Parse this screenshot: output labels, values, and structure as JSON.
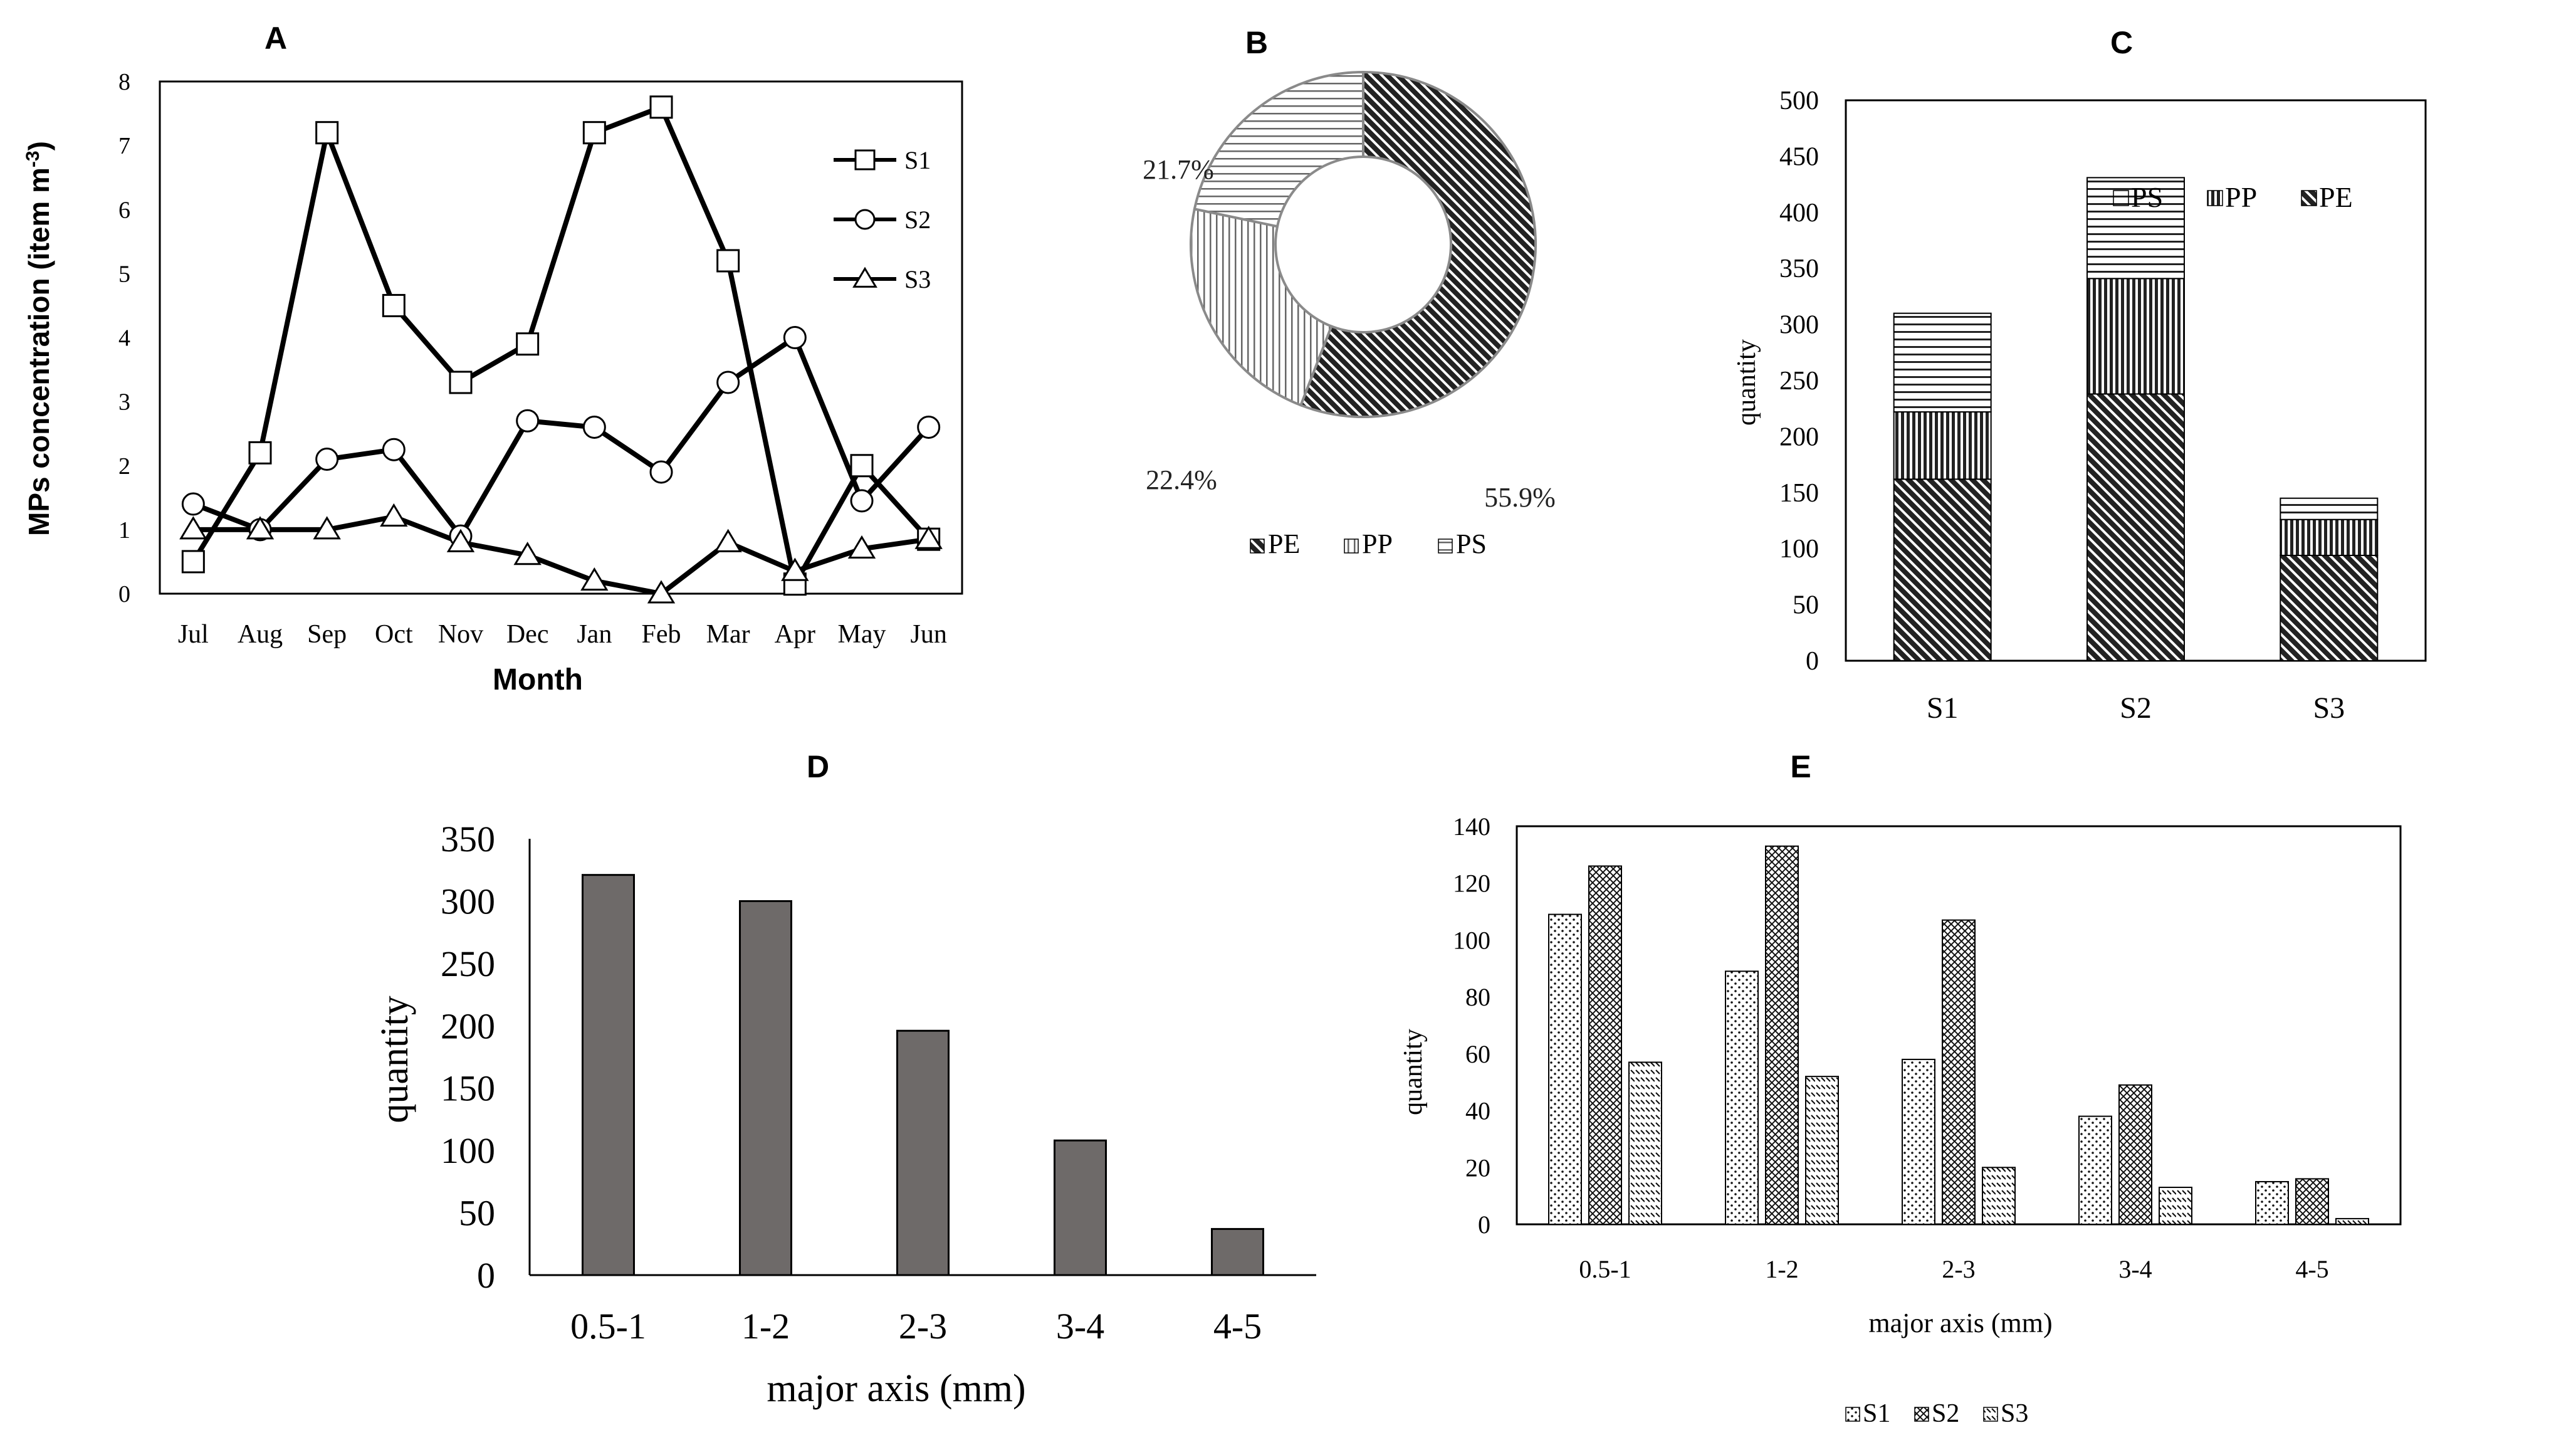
{
  "panel_labels": {
    "a": "A",
    "b": "B",
    "c": "C",
    "d": "D",
    "e": "E"
  },
  "colors": {
    "ink": "#000000",
    "dark_gray": "#6e6a69",
    "mid_gray": "#8a8a8a"
  },
  "chart_data": [
    {
      "id": "A",
      "type": "line",
      "title": "A",
      "xlabel": "Month",
      "ylabel_main": "MPs concentration (item m",
      "ylabel_sup": "-3",
      "ylabel_end": ")",
      "categories": [
        "Jul",
        "Aug",
        "Sep",
        "Oct",
        "Nov",
        "Dec",
        "Jan",
        "Feb",
        "Mar",
        "Apr",
        "May",
        "Jun"
      ],
      "ylim": [
        0,
        8
      ],
      "yticks": [
        "0",
        "1",
        "2",
        "3",
        "4",
        "5",
        "6",
        "7",
        "8"
      ],
      "legend_position": "top-right",
      "series": [
        {
          "name": "S1",
          "marker": "square",
          "values": [
            0.5,
            2.2,
            7.2,
            4.5,
            3.3,
            3.9,
            7.2,
            7.6,
            5.2,
            0.15,
            2.0,
            0.85
          ]
        },
        {
          "name": "S2",
          "marker": "circle",
          "values": [
            1.4,
            1.0,
            2.1,
            2.25,
            0.9,
            2.7,
            2.6,
            1.9,
            3.3,
            4.0,
            1.45,
            2.6
          ]
        },
        {
          "name": "S3",
          "marker": "triangle",
          "values": [
            1.0,
            1.0,
            1.0,
            1.2,
            0.8,
            0.6,
            0.2,
            0.0,
            0.8,
            0.35,
            0.7,
            0.85
          ]
        }
      ]
    },
    {
      "id": "B",
      "type": "pie",
      "title": "B",
      "donut": true,
      "categories": [
        "PE",
        "PP",
        "PS"
      ],
      "values": [
        55.9,
        22.4,
        21.7
      ],
      "labels": [
        "55.9%",
        "22.4%",
        "21.7%"
      ],
      "legend_position": "bottom"
    },
    {
      "id": "C",
      "type": "bar",
      "stacked": true,
      "title": "C",
      "ylabel": "quantity",
      "categories": [
        "S1",
        "S2",
        "S3"
      ],
      "ylim": [
        0,
        500
      ],
      "yticks": [
        "0",
        "50",
        "100",
        "150",
        "200",
        "250",
        "300",
        "350",
        "400",
        "450",
        "500"
      ],
      "legend_position": "top-right",
      "legend_order": [
        "PS",
        "PP",
        "PE"
      ],
      "series": [
        {
          "name": "PE",
          "values": [
            162,
            238,
            94
          ]
        },
        {
          "name": "PP",
          "values": [
            60,
            103,
            32
          ]
        },
        {
          "name": "PS",
          "values": [
            88,
            90,
            19
          ]
        }
      ]
    },
    {
      "id": "D",
      "type": "bar",
      "title": "D",
      "xlabel": "major axis (mm)",
      "ylabel": "quantity",
      "categories": [
        "0.5-1",
        "1-2",
        "2-3",
        "3-4",
        "4-5"
      ],
      "values": [
        321,
        300,
        196,
        108,
        37
      ],
      "ylim": [
        0,
        350
      ],
      "yticks": [
        "0",
        "50",
        "100",
        "150",
        "200",
        "250",
        "300",
        "350"
      ]
    },
    {
      "id": "E",
      "type": "bar",
      "title": "E",
      "xlabel": "major axis (mm)",
      "ylabel": "quantity",
      "categories": [
        "0.5-1",
        "1-2",
        "2-3",
        "3-4",
        "4-5"
      ],
      "ylim": [
        0,
        140
      ],
      "yticks": [
        "0",
        "20",
        "40",
        "60",
        "80",
        "100",
        "120",
        "140"
      ],
      "legend_position": "bottom",
      "series": [
        {
          "name": "S1",
          "values": [
            109,
            89,
            58,
            38,
            15
          ]
        },
        {
          "name": "S2",
          "values": [
            126,
            133,
            107,
            49,
            16
          ]
        },
        {
          "name": "S3",
          "values": [
            57,
            52,
            20,
            13,
            2
          ]
        }
      ]
    }
  ]
}
